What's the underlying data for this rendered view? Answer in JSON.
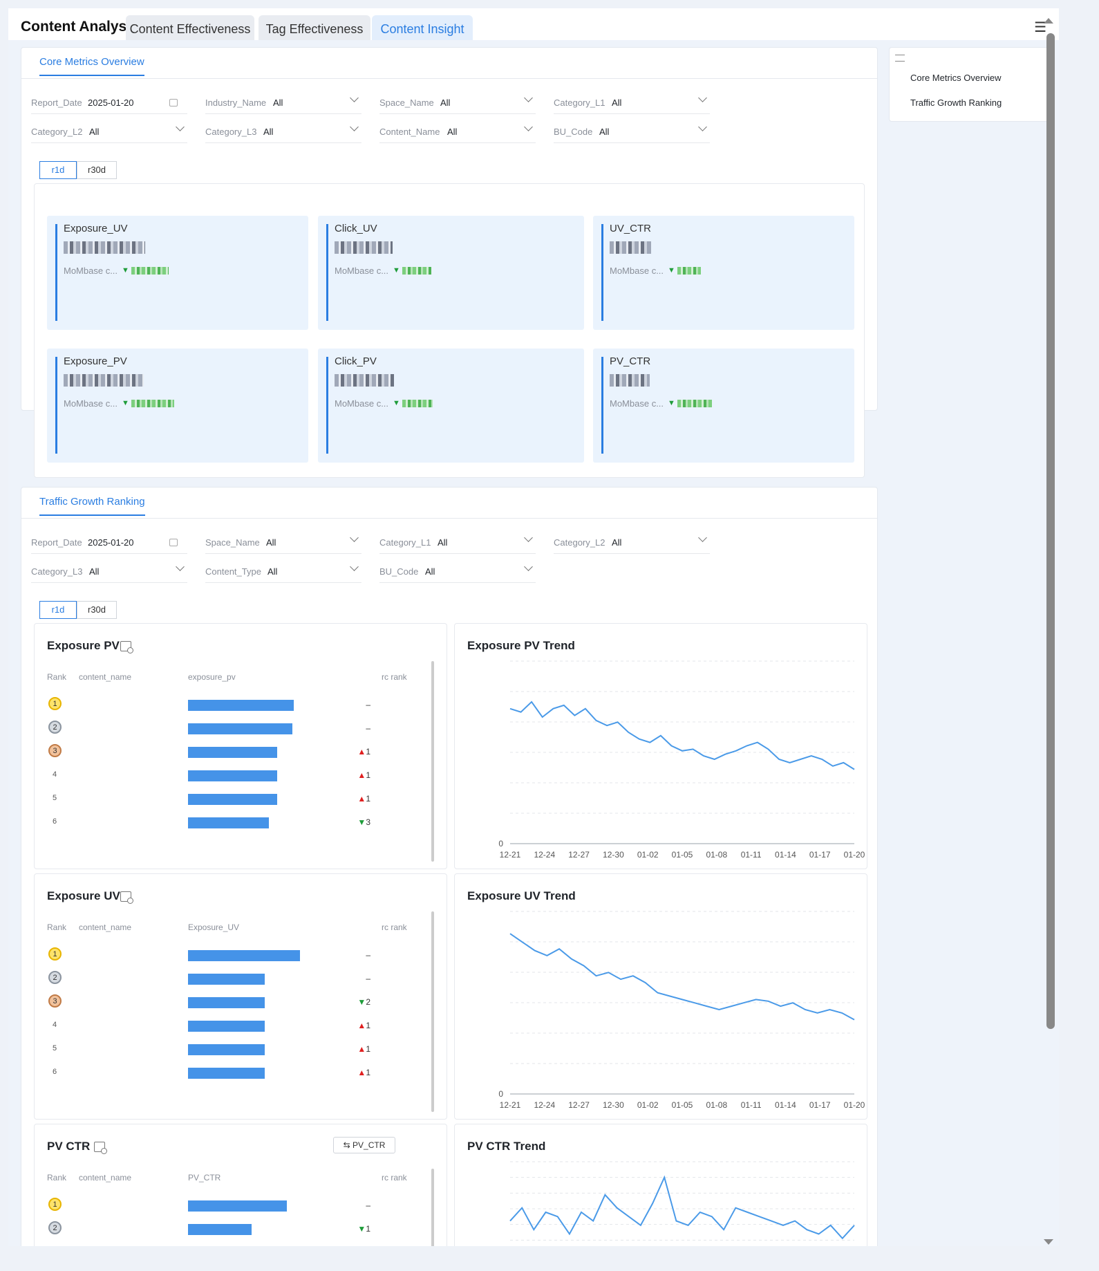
{
  "header": {
    "title": "Content Analysis",
    "tabs": [
      {
        "label": "Content Effectiveness"
      },
      {
        "label": "Tag Effectiveness"
      },
      {
        "label": "Content Insight"
      }
    ]
  },
  "anchor": {
    "items": [
      {
        "label": "Core Metrics Overview"
      },
      {
        "label": "Traffic Growth Ranking"
      }
    ]
  },
  "core": {
    "tab": "Core Metrics Overview",
    "filters": [
      {
        "label": "Report_Date",
        "value": "2025-01-20"
      },
      {
        "label": "Industry_Name",
        "value": "All"
      },
      {
        "label": "Space_Name",
        "value": "All"
      },
      {
        "label": "Category_L1",
        "value": "All"
      },
      {
        "label": "Category_L2",
        "value": "All"
      },
      {
        "label": "Category_L3",
        "value": "All"
      },
      {
        "label": "Content_Name",
        "value": "All"
      },
      {
        "label": "BU_Code",
        "value": "All"
      }
    ],
    "periods": [
      "r1d",
      "r30d"
    ],
    "cards": [
      {
        "name": "Exposure_UV",
        "compare": "MoMbase c..."
      },
      {
        "name": "Click_UV",
        "compare": "MoMbase c..."
      },
      {
        "name": "UV_CTR",
        "compare": "MoMbase c..."
      },
      {
        "name": "Exposure_PV",
        "compare": "MoMbase c..."
      },
      {
        "name": "Click_PV",
        "compare": "MoMbase c..."
      },
      {
        "name": "PV_CTR",
        "compare": "MoMbase c..."
      }
    ]
  },
  "growth": {
    "tab": "Traffic Growth Ranking",
    "filters": [
      {
        "label": "Report_Date",
        "value": "2025-01-20"
      },
      {
        "label": "Space_Name",
        "value": "All"
      },
      {
        "label": "Category_L1",
        "value": "All"
      },
      {
        "label": "Category_L2",
        "value": "All"
      },
      {
        "label": "Category_L3",
        "value": "All"
      },
      {
        "label": "Content_Type",
        "value": "All"
      },
      {
        "label": "BU_Code",
        "value": "All"
      }
    ],
    "periods": [
      "r1d",
      "r30d"
    ],
    "rankings": [
      {
        "title": "Exposure PV",
        "cols": [
          "Rank",
          "content_name",
          "exposure_pv",
          "rc rank"
        ],
        "rows": [
          {
            "rank": "1",
            "bar": 0.9,
            "delta": "–",
            "dir": ""
          },
          {
            "rank": "2",
            "bar": 0.89,
            "delta": "–",
            "dir": ""
          },
          {
            "rank": "3",
            "bar": 0.76,
            "delta": "1",
            "dir": "up"
          },
          {
            "rank": "4",
            "bar": 0.76,
            "delta": "1",
            "dir": "up"
          },
          {
            "rank": "5",
            "bar": 0.76,
            "delta": "1",
            "dir": "up"
          },
          {
            "rank": "6",
            "bar": 0.69,
            "delta": "3",
            "dir": "down"
          }
        ]
      },
      {
        "title": "Exposure UV",
        "cols": [
          "Rank",
          "content_name",
          "Exposure_UV",
          "rc rank"
        ],
        "rows": [
          {
            "rank": "1",
            "bar": 0.95,
            "delta": "–",
            "dir": ""
          },
          {
            "rank": "2",
            "bar": 0.65,
            "delta": "–",
            "dir": ""
          },
          {
            "rank": "3",
            "bar": 0.65,
            "delta": "2",
            "dir": "down"
          },
          {
            "rank": "4",
            "bar": 0.65,
            "delta": "1",
            "dir": "up"
          },
          {
            "rank": "5",
            "bar": 0.65,
            "delta": "1",
            "dir": "up"
          },
          {
            "rank": "6",
            "bar": 0.65,
            "delta": "1",
            "dir": "up"
          }
        ]
      },
      {
        "title": "PV CTR",
        "button": "PV_CTR",
        "cols": [
          "Rank",
          "content_name",
          "PV_CTR",
          "rc rank"
        ],
        "rows": [
          {
            "rank": "1",
            "bar": 0.84,
            "delta": "–",
            "dir": ""
          },
          {
            "rank": "2",
            "bar": 0.54,
            "delta": "1",
            "dir": "down"
          }
        ]
      }
    ],
    "trends": [
      {
        "title": "Exposure PV Trend",
        "zero": "0",
        "x": [
          "12-21",
          "12-24",
          "12-27",
          "12-30",
          "01-02",
          "01-05",
          "01-08",
          "01-11",
          "01-14",
          "01-17",
          "01-20"
        ]
      },
      {
        "title": "Exposure UV Trend",
        "zero": "0",
        "x": [
          "12-21",
          "12-24",
          "12-27",
          "12-30",
          "01-02",
          "01-05",
          "01-08",
          "01-11",
          "01-14",
          "01-17",
          "01-20"
        ]
      },
      {
        "title": "PV CTR Trend",
        "x": []
      }
    ]
  },
  "colors": {
    "accent": "#2a7de1",
    "bar": "#4593e8",
    "up": "#e02020",
    "down": "#1e9c3a",
    "line": "#4a9ae8"
  },
  "icons": [
    "info-icon",
    "outline-icon",
    "calendar-icon",
    "chevron-down-icon",
    "chart-export-icon",
    "swap-icon",
    "medal-icon"
  ]
}
